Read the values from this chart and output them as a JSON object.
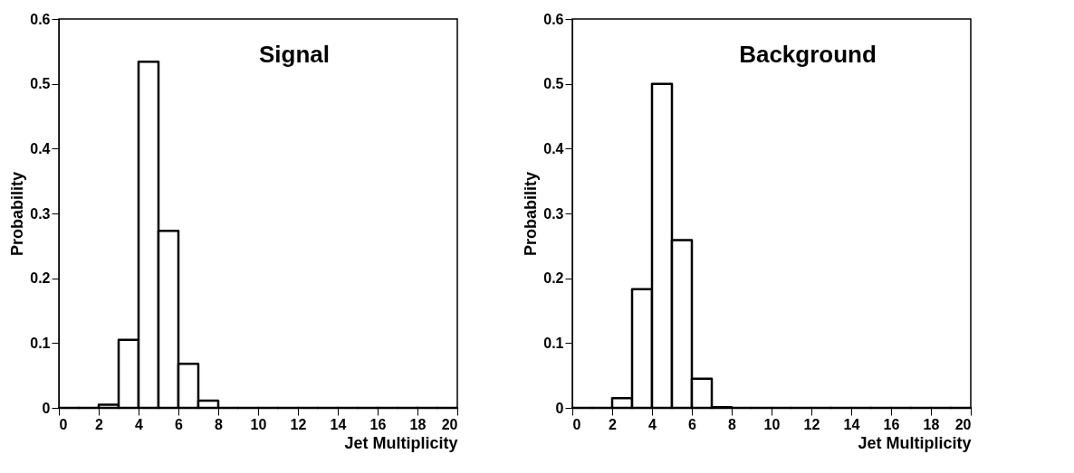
{
  "chart_data": [
    {
      "type": "histogram",
      "annotations": [
        "Signal"
      ],
      "xlabel": "Jet Multiplicity",
      "ylabel": "Probability",
      "color": "#000000",
      "bins": [
        0,
        1,
        2,
        3,
        4,
        5,
        6,
        7,
        8,
        9,
        10,
        11,
        12,
        13,
        14,
        15,
        16,
        17,
        18,
        19,
        20
      ],
      "values": [
        0,
        0,
        0.005,
        0.105,
        0.534,
        0.273,
        0.068,
        0.011,
        0,
        0,
        0,
        0,
        0,
        0,
        0,
        0,
        0,
        0,
        0,
        0
      ],
      "xlim": [
        0,
        20
      ],
      "xticks": [
        0,
        2,
        4,
        6,
        8,
        10,
        12,
        14,
        16,
        18,
        20
      ],
      "ylim": [
        0,
        0.6
      ],
      "yticks": [
        0,
        0.1,
        0.2,
        0.3,
        0.4,
        0.5,
        0.6
      ],
      "grid": false
    },
    {
      "type": "histogram",
      "annotations": [
        "Background"
      ],
      "xlabel": "Jet Multiplicity",
      "ylabel": "Probability",
      "color": "#000000",
      "bins": [
        0,
        1,
        2,
        3,
        4,
        5,
        6,
        7,
        8,
        9,
        10,
        11,
        12,
        13,
        14,
        15,
        16,
        17,
        18,
        19,
        20
      ],
      "values": [
        0,
        0,
        0.015,
        0.183,
        0.5,
        0.259,
        0.045,
        0.001,
        0,
        0,
        0,
        0,
        0,
        0,
        0,
        0,
        0,
        0,
        0,
        0
      ],
      "xlim": [
        0,
        20
      ],
      "xticks": [
        0,
        2,
        4,
        6,
        8,
        10,
        12,
        14,
        16,
        18,
        20
      ],
      "ylim": [
        0,
        0.6
      ],
      "yticks": [
        0,
        0.1,
        0.2,
        0.3,
        0.4,
        0.5,
        0.6
      ],
      "grid": false
    }
  ]
}
